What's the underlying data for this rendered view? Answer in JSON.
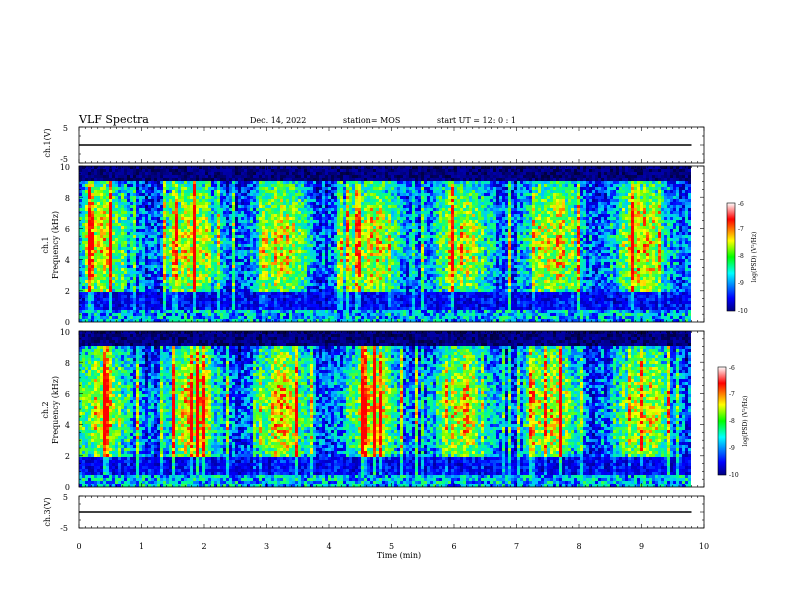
{
  "header": {
    "title": "VLF Spectra",
    "date": "Dec. 14, 2022",
    "station": "station= MOS",
    "start_ut": "start  UT =   12: 0  : 1"
  },
  "chart_data": [
    {
      "type": "line",
      "name": "ch1-waveform",
      "ylabel": "ch.1(V)",
      "ylim": [
        -5,
        5
      ],
      "yticks": [
        "5",
        "-5"
      ],
      "xlim": [
        0,
        10
      ],
      "series": [
        {
          "name": "ch.1",
          "level": 0
        }
      ]
    },
    {
      "type": "heatmap",
      "name": "ch1-spectrogram",
      "ylabel_line1": "ch.1",
      "ylabel_line2": "Frequency (kHz)",
      "ylim": [
        0,
        10
      ],
      "yticks": [
        "0",
        "2",
        "4",
        "6",
        "8",
        "10"
      ],
      "xlim": [
        0,
        10
      ],
      "data_end_min": 9.8,
      "colorbar": {
        "label": "log(PSD) (V²/Hz)",
        "range": [
          -10,
          -6
        ],
        "ticks": [
          "-6",
          "-7",
          "-8",
          "-9",
          "-10"
        ]
      }
    },
    {
      "type": "heatmap",
      "name": "ch2-spectrogram",
      "ylabel_line1": "ch.2",
      "ylabel_line2": "Frequency (kHz)",
      "ylim": [
        0,
        10
      ],
      "yticks": [
        "0",
        "2",
        "4",
        "6",
        "8",
        "10"
      ],
      "xlim": [
        0,
        10
      ],
      "data_end_min": 9.8,
      "colorbar": {
        "label": "log(PSD) (V²/Hz)",
        "range": [
          -10,
          -6
        ],
        "ticks": [
          "-6",
          "-7",
          "-8",
          "-9",
          "-10"
        ]
      }
    },
    {
      "type": "line",
      "name": "ch3-waveform",
      "ylabel": "ch.3(V)",
      "ylim": [
        -5,
        5
      ],
      "yticks": [
        "5",
        "-5"
      ],
      "xlim": [
        0,
        10
      ],
      "series": [
        {
          "name": "ch.3",
          "level": 0
        }
      ]
    }
  ],
  "xaxis": {
    "label": "Time  (min)",
    "ticks": [
      "0",
      "1",
      "2",
      "3",
      "4",
      "5",
      "6",
      "7",
      "8",
      "9",
      "10"
    ]
  },
  "colors": {
    "axis": "#000000",
    "background": "#ffffff"
  }
}
